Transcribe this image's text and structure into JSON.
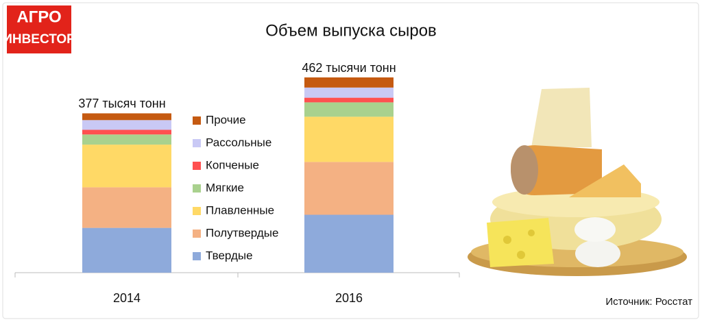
{
  "logo": {
    "line1": "АГРО",
    "line2": "ИНВЕСТОР"
  },
  "chart_data": {
    "type": "stacked_bar",
    "title": "Объем выпуска сыров",
    "categories": [
      "2014",
      "2016"
    ],
    "total_labels": [
      "377 тысяч тонн",
      "462 тысячи тонн"
    ],
    "series": [
      {
        "name": "Твердые",
        "color": "#8eaadb",
        "values": [
          106,
          137
        ]
      },
      {
        "name": "Полутвердые",
        "color": "#f4b183",
        "values": [
          96,
          125
        ]
      },
      {
        "name": "Плавленные",
        "color": "#ffd966",
        "values": [
          101,
          107
        ]
      },
      {
        "name": "Мягкие",
        "color": "#a9d18e",
        "values": [
          24,
          34
        ]
      },
      {
        "name": "Копченые",
        "color": "#ff5050",
        "values": [
          11,
          11
        ]
      },
      {
        "name": "Рассольные",
        "color": "#c9c9f5",
        "values": [
          23,
          24
        ]
      },
      {
        "name": "Прочие",
        "color": "#c55a11",
        "values": [
          16,
          24
        ]
      }
    ],
    "source": "Источник: Росстат"
  }
}
